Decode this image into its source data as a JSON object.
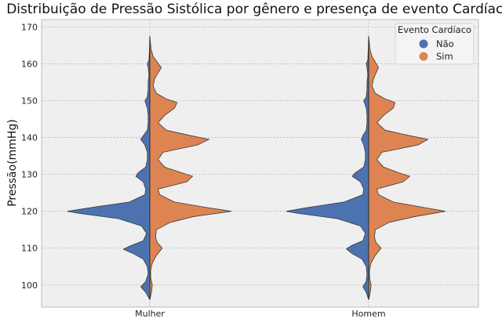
{
  "chart_data": {
    "type": "violin",
    "title": "Distribuição de Pressão Sistólica por gênero e presença de evento Cardíaco",
    "xlabel": "",
    "ylabel": "Pressão(mmHg)",
    "ylim": [
      94,
      172
    ],
    "yticks": [
      100,
      110,
      120,
      130,
      140,
      150,
      160,
      170
    ],
    "categories": [
      "Mulher",
      "Homem"
    ],
    "grid": true,
    "legend": {
      "title": "Evento Cardíaco",
      "placement": "top-right",
      "entries": [
        "Não",
        "Sim"
      ]
    },
    "series": [
      {
        "name": "Não",
        "side": "left",
        "color": "#4c72b0",
        "density": {
          "Mulher": [
            [
              96,
              0
            ],
            [
              98,
              0.05
            ],
            [
              99.5,
              0.11
            ],
            [
              101,
              0.05
            ],
            [
              103,
              0.02
            ],
            [
              105,
              0.03
            ],
            [
              107,
              0.08
            ],
            [
              108.5,
              0.2
            ],
            [
              109.7,
              0.32
            ],
            [
              110.5,
              0.25
            ],
            [
              112,
              0.08
            ],
            [
              114,
              0.04
            ],
            [
              116,
              0.1
            ],
            [
              118,
              0.38
            ],
            [
              119.4,
              0.85
            ],
            [
              120,
              1.0
            ],
            [
              121,
              0.72
            ],
            [
              122.5,
              0.25
            ],
            [
              124.5,
              0.06
            ],
            [
              126,
              0.05
            ],
            [
              128,
              0.08
            ],
            [
              129.5,
              0.17
            ],
            [
              130.5,
              0.14
            ],
            [
              132,
              0.05
            ],
            [
              134,
              0.03
            ],
            [
              136,
              0.03
            ],
            [
              138,
              0.06
            ],
            [
              139.5,
              0.11
            ],
            [
              140.5,
              0.08
            ],
            [
              142,
              0.03
            ],
            [
              144,
              0.02
            ],
            [
              146,
              0.02
            ],
            [
              148,
              0.03
            ],
            [
              150,
              0.06
            ],
            [
              151,
              0.03
            ],
            [
              153,
              0.02
            ],
            [
              155,
              0.02
            ],
            [
              157,
              0.01
            ],
            [
              159,
              0.02
            ],
            [
              160,
              0.03
            ],
            [
              161,
              0.01
            ],
            [
              164,
              0.005
            ],
            [
              167.5,
              0
            ]
          ],
          "Homem": [
            [
              96,
              0
            ],
            [
              98,
              0.03
            ],
            [
              99.5,
              0.07
            ],
            [
              101,
              0.03
            ],
            [
              103,
              0.02
            ],
            [
              105,
              0.03
            ],
            [
              107,
              0.08
            ],
            [
              108.5,
              0.2
            ],
            [
              109.8,
              0.27
            ],
            [
              110.8,
              0.2
            ],
            [
              112,
              0.07
            ],
            [
              114,
              0.04
            ],
            [
              116,
              0.1
            ],
            [
              118,
              0.38
            ],
            [
              119.4,
              0.85
            ],
            [
              120,
              1.0
            ],
            [
              121,
              0.75
            ],
            [
              122.5,
              0.3
            ],
            [
              124.5,
              0.07
            ],
            [
              126,
              0.06
            ],
            [
              128,
              0.1
            ],
            [
              129.5,
              0.2
            ],
            [
              130.5,
              0.16
            ],
            [
              132,
              0.06
            ],
            [
              134,
              0.04
            ],
            [
              136,
              0.04
            ],
            [
              138,
              0.06
            ],
            [
              139.5,
              0.09
            ],
            [
              140.5,
              0.07
            ],
            [
              142,
              0.03
            ],
            [
              144,
              0.02
            ],
            [
              146,
              0.02
            ],
            [
              148,
              0.03
            ],
            [
              150,
              0.06
            ],
            [
              151,
              0.03
            ],
            [
              153,
              0.02
            ],
            [
              155,
              0.02
            ],
            [
              157,
              0.01
            ],
            [
              159,
              0.02
            ],
            [
              160,
              0.03
            ],
            [
              161,
              0.01
            ],
            [
              164,
              0.005
            ],
            [
              167.5,
              0
            ]
          ]
        }
      },
      {
        "name": "Sim",
        "side": "right",
        "color": "#dd8452",
        "density": {
          "Mulher": [
            [
              96,
              0
            ],
            [
              98,
              0.02
            ],
            [
              100,
              0.03
            ],
            [
              102,
              0.01
            ],
            [
              104,
              0.01
            ],
            [
              106,
              0.03
            ],
            [
              108,
              0.08
            ],
            [
              110,
              0.15
            ],
            [
              111.5,
              0.09
            ],
            [
              113,
              0.07
            ],
            [
              115,
              0.08
            ],
            [
              117,
              0.25
            ],
            [
              118.5,
              0.52
            ],
            [
              120,
              0.99
            ],
            [
              121,
              0.7
            ],
            [
              122.5,
              0.3
            ],
            [
              124.5,
              0.12
            ],
            [
              126,
              0.1
            ],
            [
              128,
              0.45
            ],
            [
              129.5,
              0.52
            ],
            [
              130.5,
              0.38
            ],
            [
              132,
              0.18
            ],
            [
              134,
              0.1
            ],
            [
              136,
              0.16
            ],
            [
              138,
              0.58
            ],
            [
              139.5,
              0.72
            ],
            [
              140.5,
              0.5
            ],
            [
              142,
              0.2
            ],
            [
              144,
              0.1
            ],
            [
              146,
              0.18
            ],
            [
              148,
              0.3
            ],
            [
              149.5,
              0.33
            ],
            [
              150.5,
              0.2
            ],
            [
              152,
              0.08
            ],
            [
              154,
              0.04
            ],
            [
              156,
              0.06
            ],
            [
              157.5,
              0.1
            ],
            [
              159,
              0.14
            ],
            [
              160.5,
              0.09
            ],
            [
              162,
              0.04
            ],
            [
              164,
              0.015
            ],
            [
              167.5,
              0
            ]
          ],
          "Homem": [
            [
              96,
              0
            ],
            [
              98,
              0.02
            ],
            [
              100,
              0.03
            ],
            [
              102,
              0.01
            ],
            [
              104,
              0.01
            ],
            [
              106,
              0.03
            ],
            [
              108,
              0.08
            ],
            [
              110,
              0.15
            ],
            [
              111.5,
              0.09
            ],
            [
              113,
              0.07
            ],
            [
              115,
              0.08
            ],
            [
              117,
              0.25
            ],
            [
              118.5,
              0.55
            ],
            [
              120,
              0.93
            ],
            [
              121,
              0.68
            ],
            [
              122.5,
              0.3
            ],
            [
              124.5,
              0.12
            ],
            [
              126,
              0.1
            ],
            [
              128,
              0.42
            ],
            [
              129.5,
              0.5
            ],
            [
              130.5,
              0.36
            ],
            [
              132,
              0.18
            ],
            [
              134,
              0.1
            ],
            [
              136,
              0.16
            ],
            [
              138,
              0.6
            ],
            [
              139.5,
              0.72
            ],
            [
              140.5,
              0.5
            ],
            [
              142,
              0.2
            ],
            [
              144,
              0.1
            ],
            [
              146,
              0.18
            ],
            [
              148,
              0.3
            ],
            [
              149.5,
              0.32
            ],
            [
              150.5,
              0.2
            ],
            [
              152,
              0.08
            ],
            [
              154,
              0.04
            ],
            [
              156,
              0.06
            ],
            [
              157.5,
              0.09
            ],
            [
              159,
              0.12
            ],
            [
              160.5,
              0.08
            ],
            [
              162,
              0.04
            ],
            [
              164,
              0.015
            ],
            [
              167.5,
              0
            ]
          ]
        }
      }
    ]
  }
}
